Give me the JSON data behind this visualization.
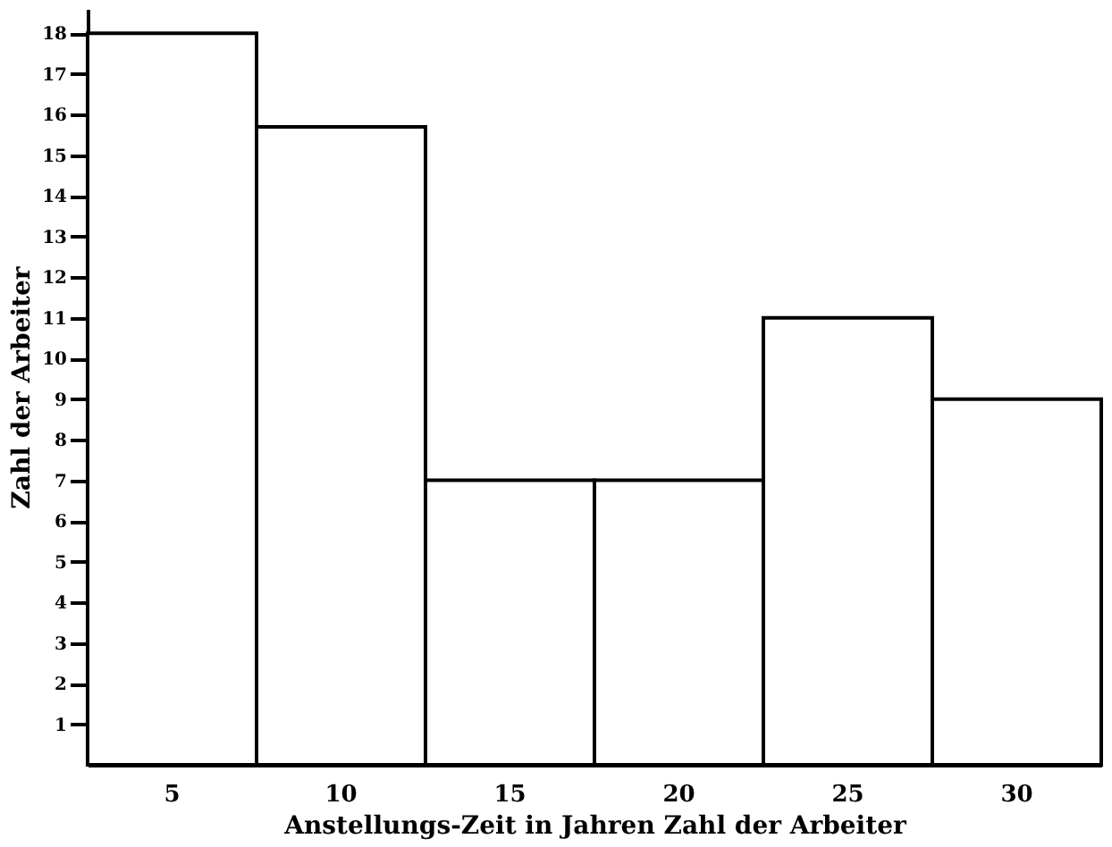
{
  "chart_data": {
    "type": "bar",
    "xlabel": "Anstellungs-Zeit in Jahren Zahl der Arbeiter",
    "ylabel": "Zahl der Arbeiter",
    "categories": [
      "5",
      "10",
      "15",
      "20",
      "25",
      "30"
    ],
    "values": [
      18,
      15.7,
      7,
      7,
      11,
      9
    ],
    "color": "#ffffff",
    "ylim": [
      0,
      18.6
    ],
    "yticks": [
      1,
      2,
      3,
      4,
      5,
      6,
      7,
      8,
      9,
      10,
      11,
      12,
      13,
      14,
      15,
      16,
      17,
      18
    ],
    "grid": false
  }
}
